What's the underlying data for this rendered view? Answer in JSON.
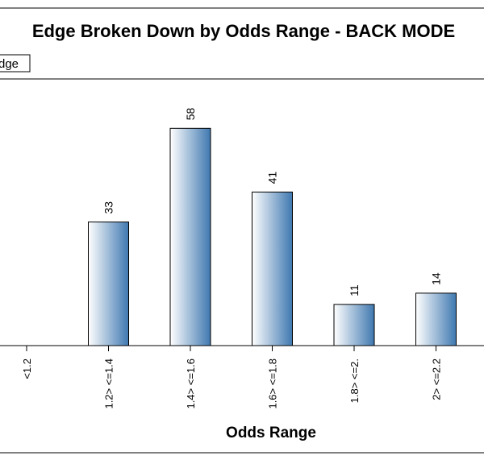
{
  "chart_data": {
    "type": "bar",
    "title": "Edge Broken Down by Odds Range - BACK MODE",
    "xlabel": "Odds Range",
    "ylabel": "",
    "categories": [
      "<1.2",
      "1.2> <=1.4",
      "1.4> <=1.6",
      "1.6> <=1.8",
      "1.8> <=2.",
      "2> <=2.2"
    ],
    "values": [
      null,
      33,
      58,
      41,
      11,
      14
    ],
    "data_labels": [
      "",
      "33",
      "58",
      "41",
      "11",
      "14"
    ],
    "ylim": [
      0,
      65
    ],
    "legend": {
      "label": "dge",
      "placement": "top-left"
    },
    "grid": false,
    "colors": {
      "bar_light": "#ffffff",
      "bar_dark": "#3f78b0",
      "stroke": "#000000"
    }
  }
}
